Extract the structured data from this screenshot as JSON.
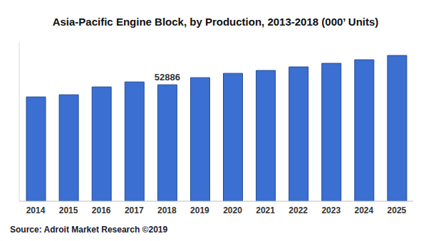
{
  "chart_data": {
    "type": "bar",
    "title": "Asia-Pacific Engine Block, by Production, 2013-2018 (000’ Units)",
    "subtitle": "Source: Adroit Market Research ©2019",
    "categories": [
      "2014",
      "2015",
      "2016",
      "2017",
      "2018",
      "2019",
      "2020",
      "2021",
      "2022",
      "2023",
      "2024",
      "2025"
    ],
    "values": [
      47370,
      48340,
      51910,
      54180,
      52886,
      56130,
      58070,
      59370,
      61000,
      62620,
      64240,
      66190
    ],
    "value_labels": [
      null,
      null,
      null,
      null,
      "52886",
      null,
      null,
      null,
      null,
      null,
      null,
      null
    ],
    "data_labels": true,
    "color": "#3b6fd1",
    "ylim": [
      0,
      72000
    ],
    "grid": false,
    "tick_labels": "x"
  }
}
